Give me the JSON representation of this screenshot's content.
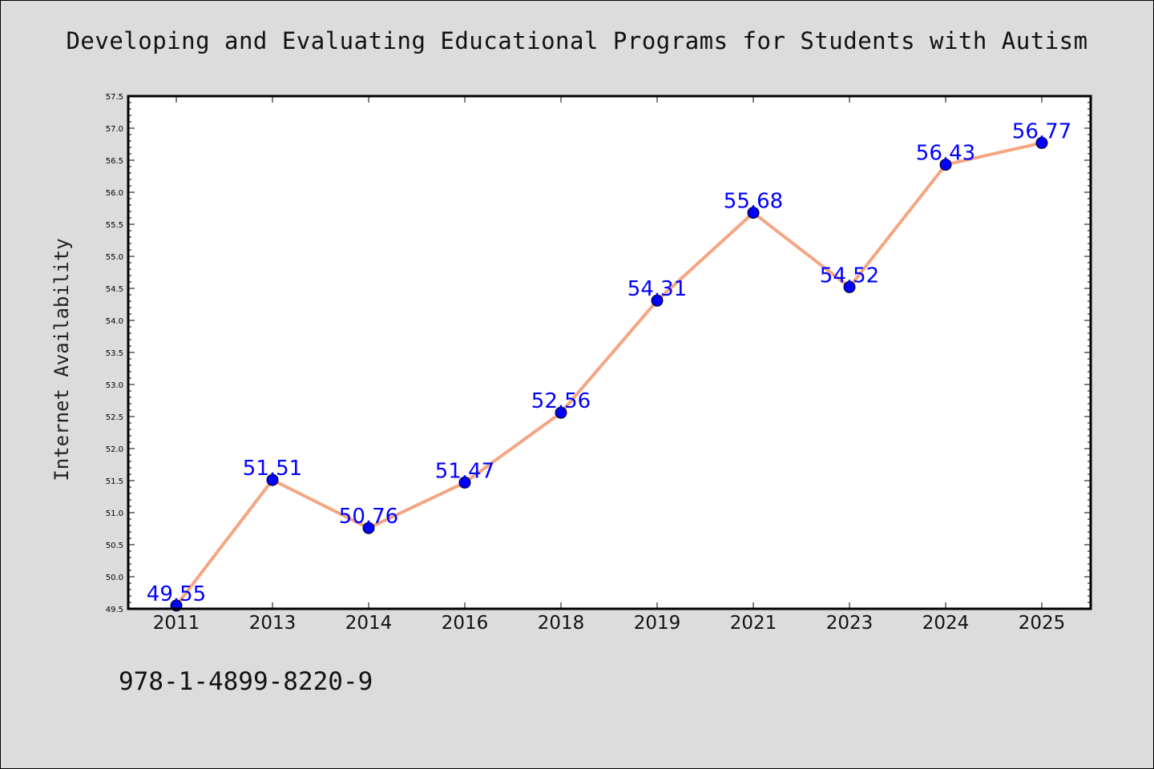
{
  "chart_data": {
    "type": "line",
    "title": "Developing and Evaluating Educational Programs for Students with Autism",
    "xlabel": "",
    "ylabel": "Internet Availability",
    "categories": [
      "2011",
      "2013",
      "2014",
      "2016",
      "2018",
      "2019",
      "2021",
      "2023",
      "2024",
      "2025"
    ],
    "series": [
      {
        "values": [
          49.55,
          51.51,
          50.76,
          51.47,
          52.56,
          54.31,
          55.68,
          54.52,
          56.43,
          56.77
        ],
        "labels": [
          "49.55",
          "51.51",
          "50.76",
          "51.47",
          "52.56",
          "54.31",
          "55.68",
          "54.52",
          "56.43",
          "56.77"
        ],
        "line_color": "#f4a582",
        "marker_color": "#0000ff"
      }
    ],
    "ylim": [
      49.5,
      57.5
    ],
    "yticks": [
      "49.5",
      "50.0",
      "50.5",
      "51.0",
      "51.5",
      "52.0",
      "52.5",
      "53.0",
      "53.5",
      "54.0",
      "54.5",
      "55.0",
      "55.5",
      "56.0",
      "56.5",
      "57.0",
      "57.5"
    ],
    "grid": false,
    "legend": "none"
  },
  "footnote": "978-1-4899-8220-9",
  "colors": {
    "background": "#dcdcdc",
    "plot_background": "#ffffff",
    "label_color": "#0000ff"
  }
}
